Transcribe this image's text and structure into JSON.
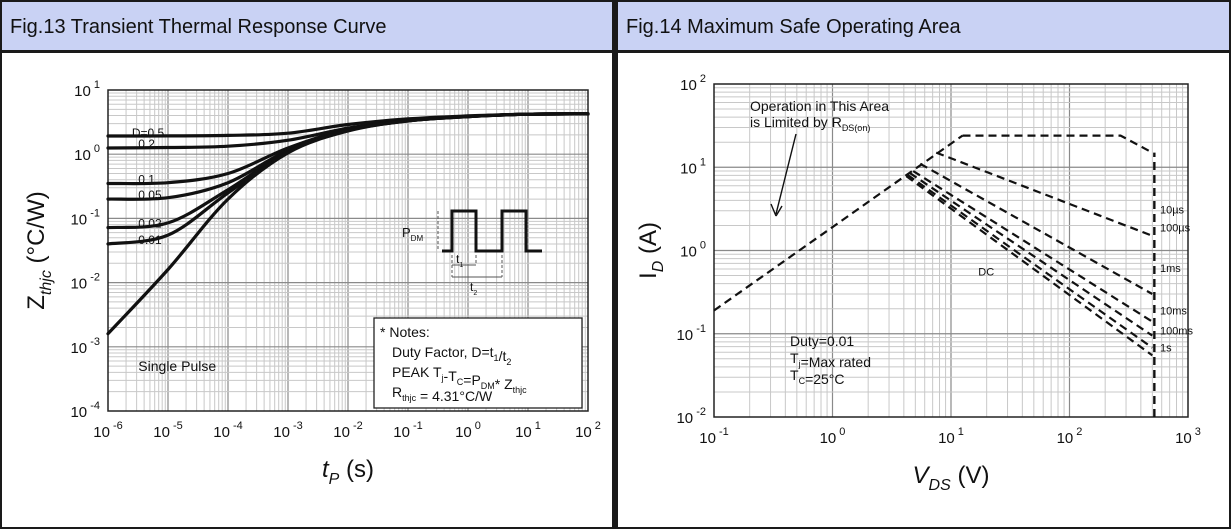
{
  "left_panel": {
    "title": "Fig.13 Transient Thermal Response Curve"
  },
  "right_panel": {
    "title": "Fig.14 Maximum Safe Operating Area"
  },
  "chart_data": [
    {
      "type": "line",
      "title": "Fig.13 Transient Thermal Response Curve",
      "x_scale": "log",
      "y_scale": "log",
      "xlim": [
        1e-06,
        100
      ],
      "ylim": [
        0.0001,
        10
      ],
      "x_ticks": [
        {
          "base": "10",
          "exp": "-6"
        },
        {
          "base": "10",
          "exp": "-5"
        },
        {
          "base": "10",
          "exp": "-4"
        },
        {
          "base": "10",
          "exp": "-3"
        },
        {
          "base": "10",
          "exp": "-2"
        },
        {
          "base": "10",
          "exp": "-1"
        },
        {
          "base": "10",
          "exp": "0"
        },
        {
          "base": "10",
          "exp": "1"
        },
        {
          "base": "10",
          "exp": "2"
        }
      ],
      "y_ticks": [
        {
          "base": "10",
          "exp": "1"
        },
        {
          "base": "10",
          "exp": "0"
        },
        {
          "base": "10",
          "exp": "-1"
        },
        {
          "base": "10",
          "exp": "-2"
        },
        {
          "base": "10",
          "exp": "-3"
        },
        {
          "base": "10",
          "exp": "-4"
        }
      ],
      "xlabel": {
        "main": "t",
        "sub": "P",
        "unit": " (s)"
      },
      "ylabel": {
        "main": "Z",
        "sub": "thjc",
        "unit": " (°C/W)"
      },
      "grid": true,
      "series": [
        {
          "name": "D=0.5",
          "x": [
            1e-06,
            1e-05,
            0.0001,
            0.001,
            0.01,
            0.1,
            1,
            10,
            100
          ],
          "y": [
            1.92,
            1.93,
            1.96,
            2.12,
            2.9,
            3.55,
            3.95,
            4.2,
            4.25
          ]
        },
        {
          "name": "0.2",
          "x": [
            1e-06,
            1e-05,
            0.0001,
            0.001,
            0.01,
            0.1,
            1,
            10,
            100
          ],
          "y": [
            1.25,
            1.27,
            1.33,
            1.65,
            2.55,
            3.4,
            3.9,
            4.2,
            4.25
          ]
        },
        {
          "name": "0.1",
          "x": [
            1e-06,
            1e-05,
            0.0001,
            0.001,
            0.01,
            0.1,
            1,
            10,
            100
          ],
          "y": [
            0.35,
            0.36,
            0.5,
            1.25,
            2.45,
            3.35,
            3.88,
            4.2,
            4.25
          ]
        },
        {
          "name": "0.05",
          "x": [
            1e-06,
            1e-05,
            0.0001,
            0.001,
            0.01,
            0.1,
            1,
            10,
            100
          ],
          "y": [
            0.2,
            0.21,
            0.36,
            1.15,
            2.4,
            3.32,
            3.86,
            4.2,
            4.25
          ]
        },
        {
          "name": "0.02",
          "x": [
            1e-06,
            1e-05,
            0.0001,
            0.001,
            0.01,
            0.1,
            1,
            10,
            100
          ],
          "y": [
            0.072,
            0.085,
            0.28,
            1.1,
            2.35,
            3.3,
            3.85,
            4.2,
            4.25
          ]
        },
        {
          "name": "0.01",
          "x": [
            1e-06,
            1e-05,
            0.0001,
            0.001,
            0.01,
            0.1,
            1,
            10,
            100
          ],
          "y": [
            0.04,
            0.055,
            0.25,
            1.08,
            2.33,
            3.3,
            3.85,
            4.2,
            4.25
          ]
        },
        {
          "name": "Single Pulse",
          "x": [
            1e-06,
            1e-05,
            0.0001,
            0.001,
            0.01,
            0.1,
            1,
            10,
            100
          ],
          "y": [
            0.0016,
            0.016,
            0.2,
            1.05,
            2.3,
            3.3,
            3.85,
            4.2,
            4.25
          ]
        }
      ],
      "series_labels": [
        {
          "text": "D=0.5",
          "x": 2.5e-06,
          "y": 2.15
        },
        {
          "text": "0.2",
          "x": 3.2e-06,
          "y": 1.45
        },
        {
          "text": "0.1",
          "x": 3.2e-06,
          "y": 0.4
        },
        {
          "text": "0.05",
          "x": 3.2e-06,
          "y": 0.23
        },
        {
          "text": "0.02",
          "x": 3.2e-06,
          "y": 0.083
        },
        {
          "text": "0.01",
          "x": 3.2e-06,
          "y": 0.046
        }
      ],
      "annotations": {
        "single_pulse": {
          "text": "Single Pulse",
          "x": 3.2e-06,
          "y": 0.0005
        },
        "pdm": {
          "main": "P",
          "sub": "DM"
        },
        "t1": {
          "main": "t",
          "sub": "1"
        },
        "t2": {
          "main": "t",
          "sub": "2"
        },
        "notes": [
          [
            {
              "t": "* Notes:"
            }
          ],
          [
            {
              "t": "Duty Factor, D=t"
            },
            {
              "t": "1",
              "sub": true
            },
            {
              "t": "/t"
            },
            {
              "t": "2",
              "sub": true
            }
          ],
          [
            {
              "t": "PEAK T"
            },
            {
              "t": "j",
              "sub": true
            },
            {
              "t": "-T"
            },
            {
              "t": "C",
              "sub": true
            },
            {
              "t": "=P"
            },
            {
              "t": "DM",
              "sub": true
            },
            {
              "t": "* Z"
            },
            {
              "t": "thjc",
              "sub": true
            }
          ],
          [
            {
              "t": "R"
            },
            {
              "t": "thjc",
              "sub": true
            },
            {
              "t": " = 4.31°C/W"
            }
          ]
        ]
      }
    },
    {
      "type": "line",
      "title": "Fig.14 Maximum Safe Operating Area",
      "x_scale": "log",
      "y_scale": "log",
      "xlim": [
        0.1,
        1000
      ],
      "ylim": [
        0.01,
        100
      ],
      "x_ticks": [
        {
          "base": "10",
          "exp": "-1"
        },
        {
          "base": "10",
          "exp": "0"
        },
        {
          "base": "10",
          "exp": "1"
        },
        {
          "base": "10",
          "exp": "2"
        },
        {
          "base": "10",
          "exp": "3"
        }
      ],
      "y_ticks": [
        {
          "base": "10",
          "exp": "2"
        },
        {
          "base": "10",
          "exp": "1"
        },
        {
          "base": "10",
          "exp": "0"
        },
        {
          "base": "10",
          "exp": "-1"
        },
        {
          "base": "10",
          "exp": "-2"
        }
      ],
      "xlabel": {
        "main": "V",
        "sub": "DS",
        "unit": " (V)"
      },
      "ylabel": {
        "main": "I",
        "sub": "D",
        "unit": " (A)"
      },
      "grid": true,
      "line_style": "dashed",
      "series": [
        {
          "name": "10µs",
          "x": [
            12.5,
            35,
            270,
            500
          ],
          "y": [
            24,
            24,
            24,
            15
          ]
        },
        {
          "name": "100µs",
          "x": [
            7.5,
            500
          ],
          "y": [
            15,
            1.5
          ]
        },
        {
          "name": "1ms",
          "x": [
            5.5,
            500
          ],
          "y": [
            11,
            0.3
          ]
        },
        {
          "name": "10ms",
          "x": [
            4.8,
            500
          ],
          "y": [
            9,
            0.14
          ]
        },
        {
          "name": "100ms",
          "x": [
            4.5,
            500
          ],
          "y": [
            8.5,
            0.095
          ]
        },
        {
          "name": "1s",
          "x": [
            4.3,
            500
          ],
          "y": [
            8.1,
            0.068
          ]
        },
        {
          "name": "DC",
          "x": [
            4.2,
            500
          ],
          "y": [
            7.8,
            0.055
          ]
        }
      ],
      "rds_limit": {
        "x": [
          0.1,
          12.5
        ],
        "y": [
          0.19,
          24
        ]
      },
      "vmax_line": {
        "x": 520,
        "y": [
          0.01,
          15
        ]
      },
      "series_labels": [
        {
          "text": "10µs",
          "x": 580,
          "y": 3.1
        },
        {
          "text": "100µs",
          "x": 580,
          "y": 1.9
        },
        {
          "text": "1ms",
          "x": 580,
          "y": 0.62
        },
        {
          "text": "10ms",
          "x": 580,
          "y": 0.19
        },
        {
          "text": "100ms",
          "x": 580,
          "y": 0.11
        },
        {
          "text": "1s",
          "x": 580,
          "y": 0.068
        },
        {
          "text": "DC",
          "x": 17,
          "y": 0.56
        }
      ],
      "annotations": {
        "area_note": [
          [
            {
              "t": "Operation in This Area"
            }
          ],
          [
            {
              "t": "is Limited by R"
            },
            {
              "t": "DS(on)",
              "sub": true
            }
          ]
        ],
        "conditions": [
          [
            {
              "t": "Duty=0.01"
            }
          ],
          [
            {
              "t": "T"
            },
            {
              "t": "j",
              "sub": true
            },
            {
              "t": "=Max rated"
            }
          ],
          [
            {
              "t": "T"
            },
            {
              "t": "C",
              "sub": true
            },
            {
              "t": "=25°C"
            }
          ]
        ]
      }
    }
  ]
}
